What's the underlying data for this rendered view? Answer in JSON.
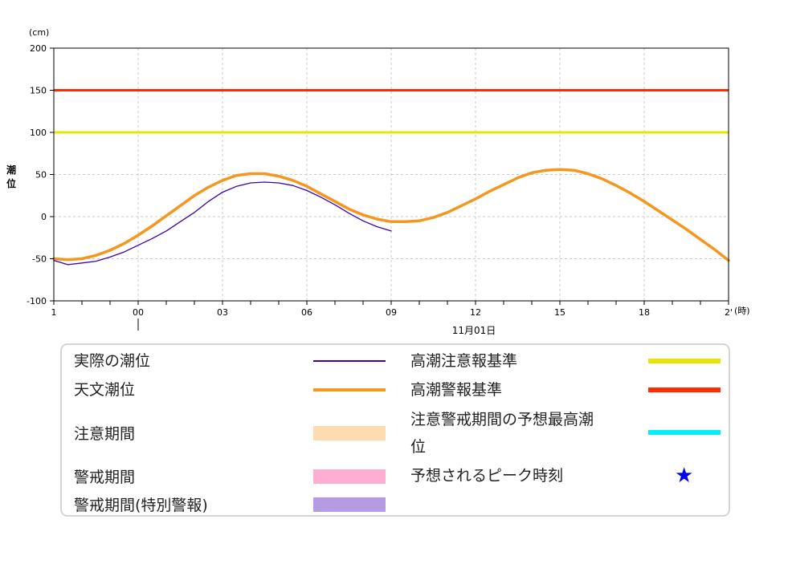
{
  "chart_data": {
    "type": "line",
    "ylabel": "潮位",
    "yunit": "(cm)",
    "xunit": "(時)",
    "date_label": "11月01日",
    "ylim": [
      -100,
      200
    ],
    "yticks": [
      -100,
      -50,
      0,
      50,
      100,
      150,
      200
    ],
    "xlim": [
      -3,
      21
    ],
    "xticks": [
      {
        "h": -3,
        "label": "1"
      },
      {
        "h": 0,
        "label": "00"
      },
      {
        "h": 3,
        "label": "03"
      },
      {
        "h": 6,
        "label": "06"
      },
      {
        "h": 9,
        "label": "09"
      },
      {
        "h": 12,
        "label": "12"
      },
      {
        "h": 15,
        "label": "15"
      },
      {
        "h": 18,
        "label": "18"
      },
      {
        "h": 21,
        "label": "2'"
      }
    ],
    "grid": true,
    "thresholds": [
      {
        "name": "高潮注意報基準",
        "value": 100,
        "color": "#e8e600"
      },
      {
        "name": "高潮警報基準",
        "value": 150,
        "color": "#ff2a00"
      }
    ],
    "series": [
      {
        "name": "実際の潮位",
        "color": "#3a00b0",
        "x": [
          -3.0,
          -2.5,
          -2.0,
          -1.5,
          -1.0,
          -0.5,
          0.0,
          0.5,
          1.0,
          1.5,
          2.0,
          2.5,
          3.0,
          3.5,
          4.0,
          4.5,
          5.0,
          5.5,
          6.0,
          6.5,
          7.0,
          7.5,
          8.0,
          8.5,
          9.0
        ],
        "y": [
          -52,
          -57,
          -55,
          -53,
          -48,
          -42,
          -34,
          -26,
          -17,
          -6,
          5,
          18,
          29,
          36,
          40,
          41,
          40,
          37,
          31,
          23,
          14,
          4,
          -5,
          -12,
          -17
        ]
      },
      {
        "name": "天文潮位",
        "color": "#f5961e",
        "x": [
          -3.0,
          -2.5,
          -2.0,
          -1.5,
          -1.0,
          -0.5,
          0.0,
          0.5,
          1.0,
          1.5,
          2.0,
          2.5,
          3.0,
          3.5,
          4.0,
          4.5,
          5.0,
          5.5,
          6.0,
          6.5,
          7.0,
          7.5,
          8.0,
          8.5,
          9.0,
          9.5,
          10.0,
          10.5,
          11.0,
          11.5,
          12.0,
          12.5,
          13.0,
          13.5,
          14.0,
          14.5,
          15.0,
          15.5,
          16.0,
          16.5,
          17.0,
          17.5,
          18.0,
          18.5,
          19.0,
          19.5,
          20.0,
          20.5,
          21.0
        ],
        "y": [
          -50,
          -51,
          -50,
          -46,
          -40,
          -32,
          -22,
          -11,
          1,
          13,
          25,
          35,
          43,
          49,
          51,
          51,
          48,
          43,
          36,
          27,
          18,
          9,
          2,
          -3,
          -6,
          -6,
          -5,
          -1,
          5,
          13,
          21,
          30,
          38,
          46,
          52,
          55,
          56,
          55,
          51,
          45,
          37,
          28,
          18,
          7,
          -4,
          -15,
          -27,
          -39,
          -52
        ]
      }
    ]
  },
  "legend": {
    "actual_tide": "実際の潮位",
    "astronomical_tide": "天文潮位",
    "advisory_period": "注意期間",
    "warning_period": "警戒期間",
    "special_warning_period": "警戒期間(特別警報)",
    "storm_surge_advisory_level": "高潮注意報基準",
    "storm_surge_warning_level": "高潮警報基準",
    "max_tide_forecast_line1": "注意警戒期間の予想最高潮",
    "max_tide_forecast_line2": "位",
    "predicted_peak": "予想されるピーク時刻",
    "star_icon": "★"
  },
  "colors": {
    "actual": "#3a00b0",
    "astronomical": "#f5961e",
    "advisory_level": "#e8e600",
    "warning_level": "#ff2a00",
    "advisory_period": "#ffdcb0",
    "warning_period": "#ffadd0",
    "special_warning_period": "#b49be2",
    "max_tide_forecast": "#00f0f5",
    "peak_star": "#0000ee"
  }
}
